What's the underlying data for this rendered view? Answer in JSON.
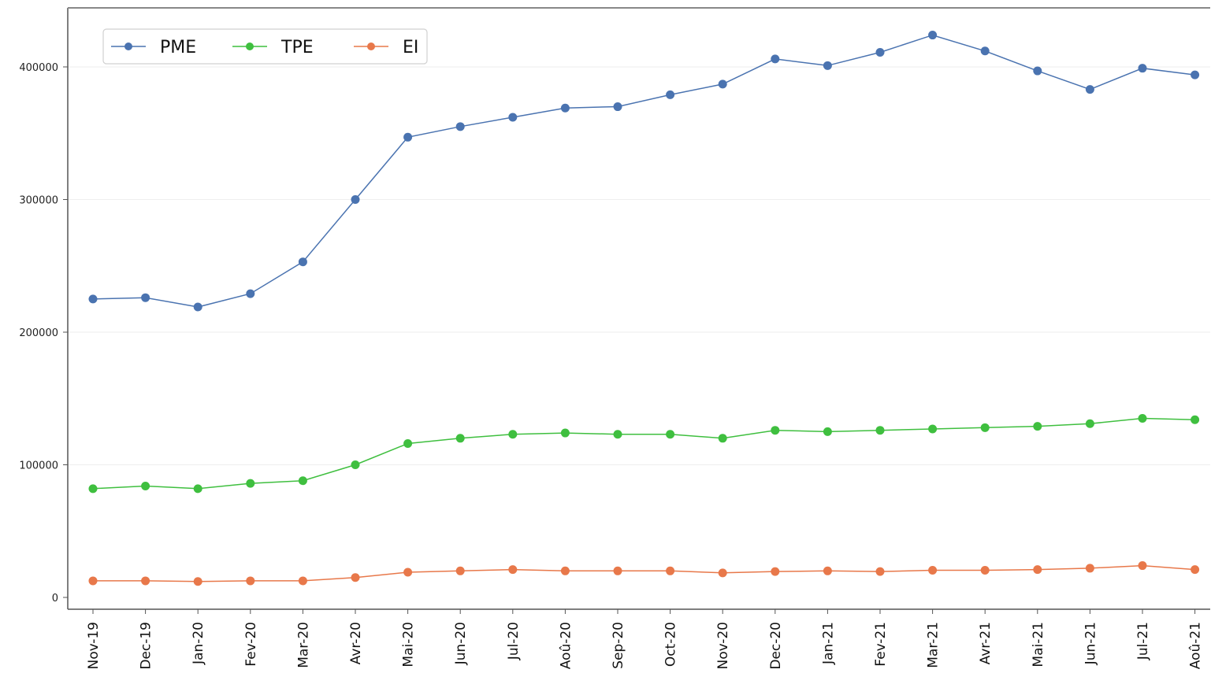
{
  "chart_data": {
    "type": "line",
    "title": "",
    "xlabel": "",
    "ylabel": "",
    "ylim": [
      0,
      420000
    ],
    "yticks": [
      "0",
      "100000",
      "200000",
      "300000",
      "400000"
    ],
    "grid": "horizontal",
    "legend_position": "top-left",
    "categories": [
      "Nov-19",
      "Dec-19",
      "Jan-20",
      "Fev-20",
      "Mar-20",
      "Avr-20",
      "Mai-20",
      "Jun-20",
      "Jul-20",
      "Aoû-20",
      "Sep-20",
      "Oct-20",
      "Nov-20",
      "Dec-20",
      "Jan-21",
      "Fev-21",
      "Mar-21",
      "Avr-21",
      "Mai-21",
      "Jun-21",
      "Jul-21",
      "Aoû-21"
    ],
    "series": [
      {
        "name": "PME",
        "color": "#4a73b0",
        "values": [
          225000,
          226000,
          219000,
          229000,
          253000,
          300000,
          347000,
          355000,
          362000,
          369000,
          370000,
          379000,
          387000,
          406000,
          401000,
          411000,
          424000,
          412000,
          397000,
          383000,
          399000,
          394000
        ]
      },
      {
        "name": "TPE",
        "color": "#3fbf3f",
        "values": [
          82000,
          84000,
          82000,
          86000,
          88000,
          100000,
          116000,
          120000,
          123000,
          124000,
          123000,
          123000,
          120000,
          126000,
          125000,
          126000,
          127000,
          128000,
          129000,
          131000,
          135000,
          134000
        ]
      },
      {
        "name": "EI",
        "color": "#e8784a",
        "values": [
          12500,
          12500,
          12000,
          12500,
          12500,
          15000,
          19000,
          20000,
          21000,
          20000,
          20000,
          20000,
          18500,
          19500,
          20000,
          19500,
          20500,
          20500,
          21000,
          22000,
          24000,
          21000
        ]
      }
    ]
  }
}
